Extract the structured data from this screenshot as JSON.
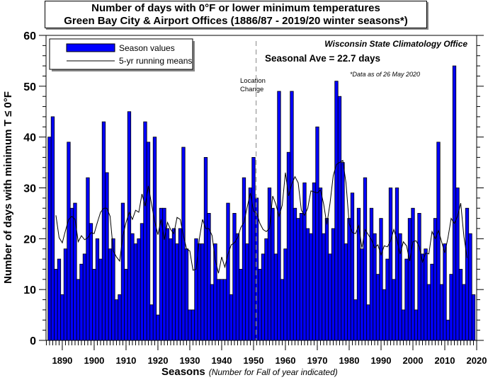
{
  "chart_data": {
    "type": "bar",
    "title": "Number of days with 0°F or lower minimum temperatures",
    "subtitle": "Green Bay City & Airport Offices (1886/87 - 2019/20 winter seasons*)",
    "xlabel": "Seasons",
    "xlabel_note": "(Number for Fall of year indicated)",
    "ylabel": "Number of days with minimum T ≤ 0°F",
    "ylim": [
      0,
      60
    ],
    "xlim": [
      1884.9,
      2020
    ],
    "yticks": [
      0,
      10,
      20,
      30,
      40,
      50,
      60
    ],
    "xticks": [
      1890,
      1900,
      1910,
      1920,
      1930,
      1940,
      1950,
      1960,
      1970,
      1980,
      1990,
      2000,
      2010,
      2020
    ],
    "start_year": 1886,
    "values": [
      40,
      44,
      14,
      16,
      9,
      18,
      39,
      26,
      27,
      12,
      15,
      17,
      32,
      23,
      14,
      20,
      16,
      43,
      33,
      18,
      20,
      8,
      9,
      27,
      14,
      45,
      21,
      19,
      20,
      23,
      43,
      39,
      7,
      40,
      5,
      26,
      26,
      22,
      20,
      22,
      19,
      22,
      38,
      18,
      6,
      6,
      20,
      19,
      19,
      36,
      25,
      11,
      19,
      12,
      12,
      12,
      27,
      9,
      25,
      21,
      14,
      32,
      19,
      30,
      36,
      28,
      14,
      17,
      20,
      30,
      26,
      17,
      49,
      12,
      18,
      37,
      49,
      26,
      24,
      25,
      31,
      22,
      21,
      31,
      42,
      30,
      21,
      24,
      17,
      22,
      51,
      48,
      35,
      19,
      24,
      29,
      8,
      26,
      18,
      32,
      7,
      26,
      21,
      13,
      24,
      10,
      16,
      30,
      12,
      30,
      21,
      6,
      16,
      24,
      26,
      6,
      25,
      17,
      18,
      11,
      15,
      24,
      39,
      11,
      19,
      4,
      13,
      54,
      30,
      14,
      11,
      26,
      21,
      9
    ],
    "running_mean_window": 5,
    "legend": {
      "bars": "Season values",
      "line": "5-yr running means",
      "placement": "top-left"
    },
    "annotations": {
      "source": "Wisconsin State Climatology Office",
      "average": "Seasonal Ave = 22.7 days",
      "data_note": "*Data as of 26 May 2020",
      "location_change": [
        "Location",
        "Change"
      ],
      "location_change_year": 1950.8
    },
    "colors": {
      "bar": "#0000ff",
      "line": "#000000"
    }
  }
}
